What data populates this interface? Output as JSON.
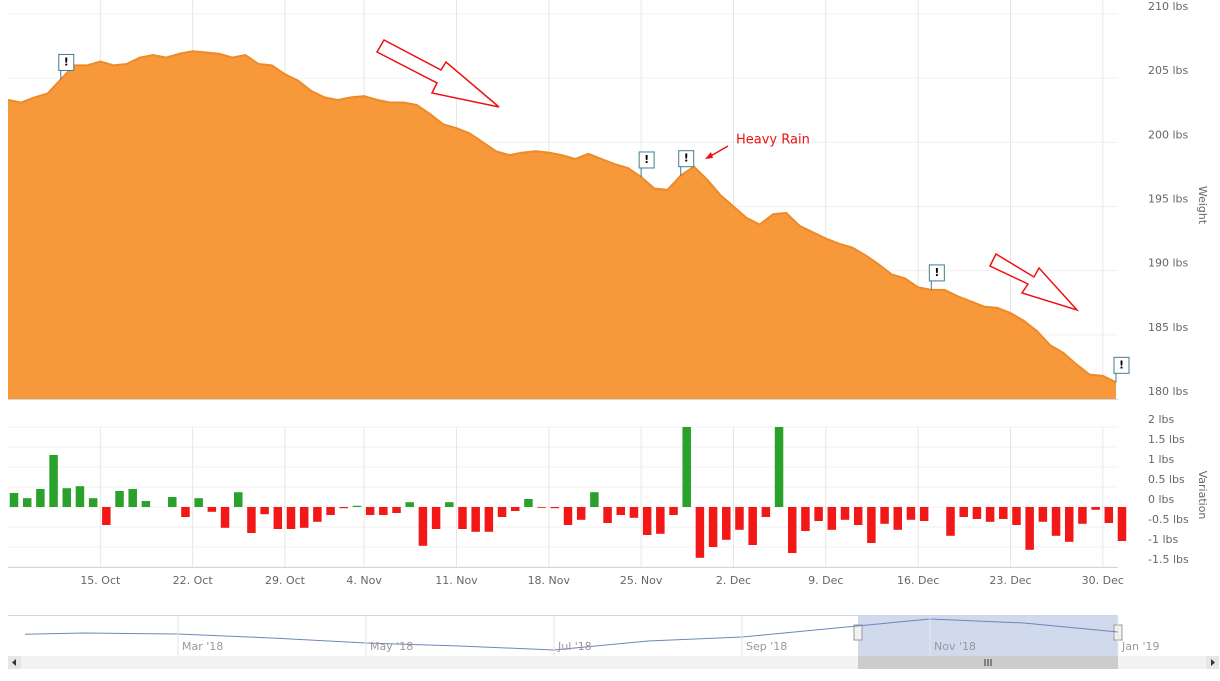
{
  "chart_data": [
    {
      "type": "area",
      "y_axis_title": "Weight",
      "annotation": "Heavy Rain",
      "color": "#f7993b",
      "line_color": "#ee8a27",
      "grid": true,
      "x": [
        "10-08",
        "10-09",
        "10-10",
        "10-11",
        "10-12",
        "10-13",
        "10-14",
        "10-15",
        "10-16",
        "10-17",
        "10-18",
        "10-19",
        "10-20",
        "10-21",
        "10-22",
        "10-23",
        "10-24",
        "10-25",
        "10-26",
        "10-27",
        "10-28",
        "10-29",
        "10-30",
        "10-31",
        "11-01",
        "11-02",
        "11-03",
        "11-04",
        "11-05",
        "11-06",
        "11-07",
        "11-08",
        "11-09",
        "11-10",
        "11-11",
        "11-12",
        "11-13",
        "11-14",
        "11-15",
        "11-16",
        "11-17",
        "11-18",
        "11-19",
        "11-20",
        "11-21",
        "11-22",
        "11-23",
        "11-24",
        "11-25",
        "11-26",
        "11-27",
        "11-28",
        "11-29",
        "11-30",
        "12-01",
        "12-02",
        "12-03",
        "12-04",
        "12-05",
        "12-06",
        "12-07",
        "12-08",
        "12-09",
        "12-10",
        "12-11",
        "12-12",
        "12-13",
        "12-14",
        "12-15",
        "12-16",
        "12-17",
        "12-18",
        "12-19",
        "12-20",
        "12-21",
        "12-22",
        "12-23",
        "12-24",
        "12-25",
        "12-26",
        "12-27",
        "12-28",
        "12-29",
        "12-30",
        "12-31"
      ],
      "values": [
        203.3,
        203.1,
        203.5,
        203.8,
        204.9,
        206.0,
        206.0,
        206.3,
        206.0,
        206.1,
        206.6,
        206.8,
        206.6,
        206.9,
        207.1,
        207.0,
        206.9,
        206.6,
        206.8,
        206.1,
        206.0,
        205.3,
        204.8,
        204.0,
        203.5,
        203.3,
        203.5,
        203.6,
        203.3,
        203.1,
        203.1,
        202.9,
        202.2,
        201.4,
        201.1,
        200.7,
        200.0,
        199.3,
        199.0,
        199.2,
        199.3,
        199.2,
        199.0,
        198.7,
        199.1,
        198.7,
        198.3,
        198.0,
        197.3,
        196.4,
        196.3,
        197.4,
        198.1,
        197.1,
        195.9,
        195.0,
        194.1,
        193.6,
        194.4,
        194.5,
        193.5,
        193.0,
        192.5,
        192.1,
        191.8,
        191.2,
        190.5,
        189.7,
        189.4,
        188.7,
        188.5,
        188.5,
        188.0,
        187.6,
        187.2,
        187.1,
        186.7,
        186.1,
        185.3,
        184.2,
        183.6,
        182.7,
        181.9,
        181.8,
        181.3
      ],
      "ylim": [
        180,
        210
      ],
      "yticks": [
        {
          "value": 210,
          "label": "210 lbs"
        },
        {
          "value": 205,
          "label": "205 lbs"
        },
        {
          "value": 200,
          "label": "200 lbs"
        },
        {
          "value": 195,
          "label": "195 lbs"
        },
        {
          "value": 190,
          "label": "190 lbs"
        },
        {
          "value": 185,
          "label": "185 lbs"
        },
        {
          "value": 180,
          "label": "180 lbs"
        }
      ],
      "flags": [
        {
          "x": "10-12",
          "title": "!"
        },
        {
          "x": "11-25",
          "title": "!"
        },
        {
          "x": "11-28",
          "title": "!"
        },
        {
          "x": "12-17",
          "title": "!"
        },
        {
          "x": "12-31",
          "title": "!"
        }
      ]
    },
    {
      "type": "bar",
      "y_axis_title": "Variation",
      "positive_color": "#2aa12a",
      "negative_color": "#f21818",
      "grid": true,
      "x": [
        "10-08",
        "10-09",
        "10-10",
        "10-11",
        "10-12",
        "10-13",
        "10-14",
        "10-15",
        "10-16",
        "10-17",
        "10-18",
        "10-19",
        "10-20",
        "10-21",
        "10-22",
        "10-23",
        "10-24",
        "10-25",
        "10-26",
        "10-27",
        "10-28",
        "10-29",
        "10-30",
        "10-31",
        "11-01",
        "11-02",
        "11-03",
        "11-04",
        "11-05",
        "11-06",
        "11-07",
        "11-08",
        "11-09",
        "11-10",
        "11-11",
        "11-12",
        "11-13",
        "11-14",
        "11-15",
        "11-16",
        "11-17",
        "11-18",
        "11-19",
        "11-20",
        "11-21",
        "11-22",
        "11-23",
        "11-24",
        "11-25",
        "11-26",
        "11-27",
        "11-28",
        "11-29",
        "11-30",
        "12-01",
        "12-02",
        "12-03",
        "12-04",
        "12-05",
        "12-06",
        "12-07",
        "12-08",
        "12-09",
        "12-10",
        "12-11",
        "12-12",
        "12-13",
        "12-14",
        "12-15",
        "12-16",
        "12-17",
        "12-18",
        "12-19",
        "12-20",
        "12-21",
        "12-22",
        "12-23",
        "12-24",
        "12-25",
        "12-26",
        "12-27",
        "12-28",
        "12-29",
        "12-30",
        "12-31"
      ],
      "values": [
        0.35,
        0.22,
        0.45,
        1.3,
        0.47,
        0.52,
        0.22,
        -0.45,
        0.4,
        0.45,
        0.15,
        0,
        0.25,
        -0.25,
        0.22,
        -0.12,
        -0.52,
        0.37,
        -0.65,
        -0.18,
        -0.55,
        -0.55,
        -0.52,
        -0.37,
        -0.2,
        -0.03,
        0.03,
        -0.2,
        -0.2,
        -0.15,
        0.12,
        -0.97,
        -0.55,
        0.12,
        -0.55,
        -0.62,
        -0.62,
        -0.25,
        -0.1,
        0.2,
        -0.02,
        -0.03,
        -0.45,
        -0.32,
        0.37,
        -0.4,
        -0.2,
        -0.27,
        -0.7,
        -0.67,
        -0.2,
        2,
        -1.27,
        -1.0,
        -0.82,
        -0.57,
        -0.95,
        -0.25,
        2,
        -1.15,
        -0.6,
        -0.35,
        -0.57,
        -0.32,
        -0.45,
        -0.9,
        -0.42,
        -0.57,
        -0.32,
        -0.35,
        0,
        -0.72,
        -0.25,
        -0.3,
        -0.37,
        -0.3,
        -0.45,
        -1.07,
        -0.37,
        -0.72,
        -0.87,
        -0.42,
        -0.07,
        -0.4,
        -0.85
      ],
      "ylim": [
        -1.5,
        2
      ],
      "yticks": [
        {
          "value": 2,
          "label": "2 lbs"
        },
        {
          "value": 1.5,
          "label": "1.5 lbs"
        },
        {
          "value": 1,
          "label": "1 lbs"
        },
        {
          "value": 0.5,
          "label": "0.5 lbs"
        },
        {
          "value": 0,
          "label": "0 lbs"
        },
        {
          "value": -0.5,
          "label": "-0.5 lbs"
        },
        {
          "value": -1,
          "label": "-1 lbs"
        },
        {
          "value": -1.5,
          "label": "-1.5 lbs"
        }
      ],
      "xticks": [
        {
          "value": "10-15",
          "label": "15. Oct"
        },
        {
          "value": "10-22",
          "label": "22. Oct"
        },
        {
          "value": "10-29",
          "label": "29. Oct"
        },
        {
          "value": "11-04",
          "label": "4. Nov"
        },
        {
          "value": "11-11",
          "label": "11. Nov"
        },
        {
          "value": "11-18",
          "label": "18. Nov"
        },
        {
          "value": "11-25",
          "label": "25. Nov"
        },
        {
          "value": "12-02",
          "label": "2. Dec"
        },
        {
          "value": "12-09",
          "label": "9. Dec"
        },
        {
          "value": "12-16",
          "label": "16. Dec"
        },
        {
          "value": "12-23",
          "label": "23. Dec"
        },
        {
          "value": "12-30",
          "label": "30. Dec"
        }
      ]
    },
    {
      "type": "line",
      "color": "#6f86b8",
      "x": [
        "Jan '18",
        "Feb '18",
        "Mar '18",
        "Apr '18",
        "May '18",
        "Jun '18",
        "Jul '18",
        "Aug '18",
        "Sep '18",
        "Oct '18",
        "Nov '18",
        "Dec '18",
        "Jan '19"
      ],
      "values": [
        200.1,
        200.9,
        200.5,
        198.9,
        196.9,
        195.7,
        194.1,
        197.7,
        199.3,
        202.9,
        206.5,
        204.9,
        201.3
      ],
      "xticks": [
        "Mar '18",
        "May '18",
        "Jul '18",
        "Sep '18",
        "Nov '18",
        "Jan '19"
      ]
    }
  ]
}
